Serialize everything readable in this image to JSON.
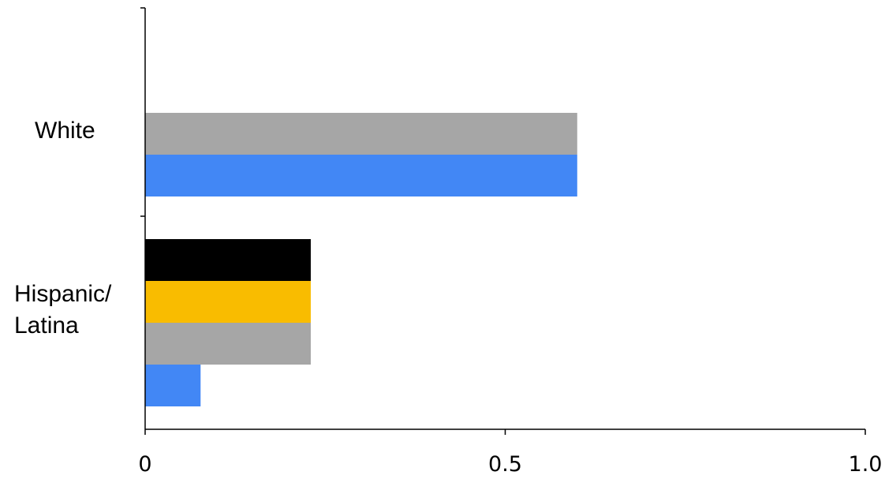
{
  "chart_data": {
    "type": "bar",
    "orientation": "horizontal",
    "categories": [
      "White",
      "Hispanic/ Latina"
    ],
    "category_label_lines": [
      [
        "White"
      ],
      [
        "Hispanic/",
        "Latina"
      ]
    ],
    "xlim": [
      0,
      1.0
    ],
    "x_ticks": [
      {
        "value": 0,
        "label": "0"
      },
      {
        "value": 0.5,
        "label": "0.5"
      },
      {
        "value": 1.0,
        "label": "1.0"
      }
    ],
    "grid": false,
    "legend": "none",
    "bars": [
      {
        "category": "White",
        "color": "#a6a6a6",
        "value": 0.6
      },
      {
        "category": "White",
        "color": "#4287f5",
        "value": 0.6
      },
      {
        "category": "Hispanic/ Latina",
        "color": "#000000",
        "value": 0.23
      },
      {
        "category": "Hispanic/ Latina",
        "color": "#f9bc00",
        "value": 0.23
      },
      {
        "category": "Hispanic/ Latina",
        "color": "#a6a6a6",
        "value": 0.23
      },
      {
        "category": "Hispanic/ Latina",
        "color": "#4287f5",
        "value": 0.077
      }
    ]
  }
}
